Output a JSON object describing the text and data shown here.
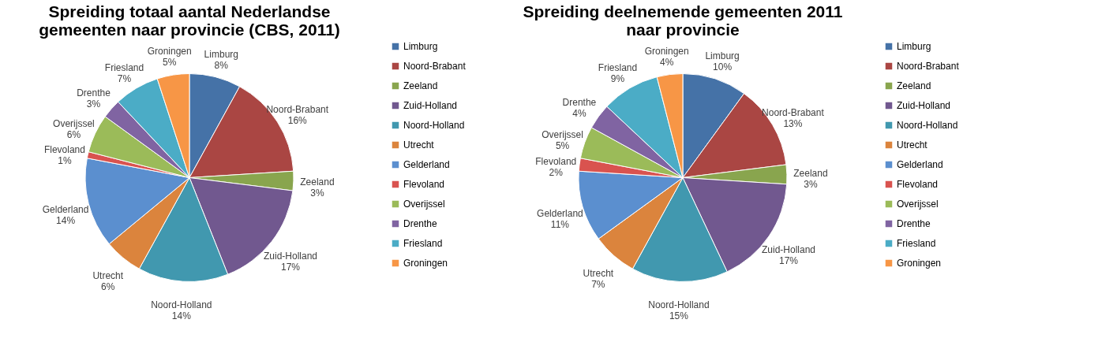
{
  "chart_data": [
    {
      "type": "pie",
      "title": "Spreiding totaal aantal Nederlandse gemeenten naar provincie (CBS, 2011)",
      "categories": [
        "Limburg",
        "Noord-Brabant",
        "Zeeland",
        "Zuid-Holland",
        "Noord-Holland",
        "Utrecht",
        "Gelderland",
        "Flevoland",
        "Overijssel",
        "Drenthe",
        "Friesland",
        "Groningen"
      ],
      "values": [
        8,
        16,
        3,
        17,
        14,
        6,
        14,
        1,
        6,
        3,
        7,
        5
      ],
      "value_labels": [
        "8%",
        "16%",
        "3%",
        "17%",
        "14%",
        "6%",
        "14%",
        "1%",
        "6%",
        "3%",
        "7%",
        "5%"
      ],
      "colors": [
        "#4572a7",
        "#aa4643",
        "#89a54e",
        "#71588f",
        "#4198af",
        "#db843d",
        "#5b8fcf",
        "#d9534f",
        "#9bbb59",
        "#8064a2",
        "#4bacc6",
        "#f79646"
      ],
      "legend": "right"
    },
    {
      "type": "pie",
      "title": "Spreiding deelnemende gemeenten 2011 naar provincie",
      "categories": [
        "Limburg",
        "Noord-Brabant",
        "Zeeland",
        "Zuid-Holland",
        "Noord-Holland",
        "Utrecht",
        "Gelderland",
        "Flevoland",
        "Overijssel",
        "Drenthe",
        "Friesland",
        "Groningen"
      ],
      "values": [
        10,
        13,
        3,
        17,
        15,
        7,
        11,
        2,
        5,
        4,
        9,
        4
      ],
      "value_labels": [
        "10%",
        "13%",
        "3%",
        "17%",
        "15%",
        "7%",
        "11%",
        "2%",
        "5%",
        "4%",
        "9%",
        "4%"
      ],
      "colors": [
        "#4572a7",
        "#aa4643",
        "#89a54e",
        "#71588f",
        "#4198af",
        "#db843d",
        "#5b8fcf",
        "#d9534f",
        "#9bbb59",
        "#8064a2",
        "#4bacc6",
        "#f79646"
      ],
      "legend": "right"
    }
  ]
}
